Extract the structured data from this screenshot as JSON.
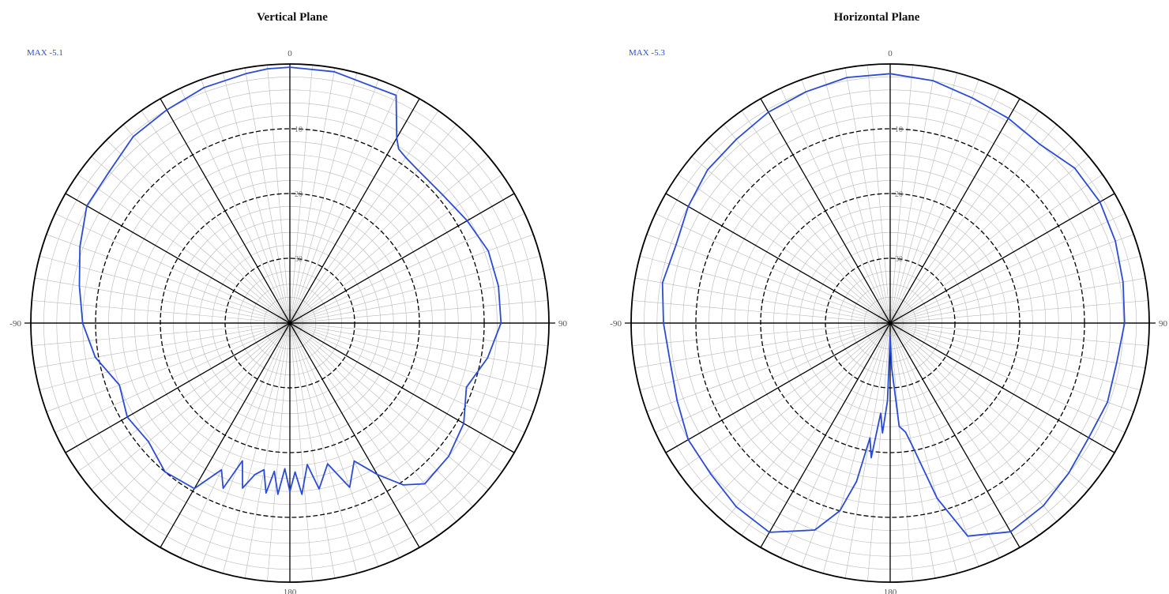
{
  "colors": {
    "trace": "#2a4bd7",
    "grid_fine": "#b8b8b8",
    "grid_major": "#000000"
  },
  "chart_data": [
    {
      "type": "polar-line",
      "title": "Vertical Plane",
      "max_label": "MAX -5.1",
      "angle_labels": [
        "0",
        "90",
        "180",
        "-90"
      ],
      "ring_labels": [
        "10",
        "20",
        "30"
      ],
      "angle_unit": "degrees",
      "radial_range": [
        -40,
        0
      ],
      "series": [
        {
          "angles": [
            0,
            10,
            20,
            25,
            30,
            32,
            35,
            40,
            50,
            60,
            70,
            80,
            90,
            100,
            110,
            120,
            130,
            140,
            145,
            150,
            155,
            160,
            165,
            170,
            173,
            176,
            178,
            180,
            182,
            184,
            186,
            188,
            190,
            193,
            196,
            199,
            202,
            205,
            210,
            220,
            230,
            240,
            250,
            260,
            270,
            280,
            290,
            300,
            310,
            320,
            330,
            340,
            350,
            355
          ],
          "values": [
            -0.5,
            -0.6,
            -1.3,
            -1.2,
            -7.0,
            -8.3,
            -8.8,
            -9.2,
            -9.2,
            -8.4,
            -7.4,
            -7.3,
            -7.4,
            -9.0,
            -11.0,
            -9.0,
            -8.0,
            -7.6,
            -9.5,
            -13.0,
            -16.5,
            -13.0,
            -17.5,
            -14.0,
            -18.0,
            -13.5,
            -17.0,
            -14.0,
            -17.5,
            -13.5,
            -17.0,
            -13.5,
            -17.0,
            -16.0,
            -13.5,
            -17.5,
            -12.5,
            -15.0,
            -10.5,
            -10.0,
            -11.5,
            -11.0,
            -12.0,
            -9.5,
            -8.0,
            -7.0,
            -5.5,
            -3.8,
            -3.6,
            -2.4,
            -2.0,
            -1.3,
            -0.9,
            -0.6
          ]
        }
      ]
    },
    {
      "type": "polar-line",
      "title": "Horizontal Plane",
      "max_label": "MAX -5.3",
      "angle_labels": [
        "0",
        "90",
        "180",
        "-90"
      ],
      "ring_labels": [
        "10",
        "20",
        "30"
      ],
      "angle_unit": "degrees",
      "radial_range": [
        -40,
        0
      ],
      "series": [
        {
          "angles": [
            0,
            10,
            20,
            30,
            40,
            50,
            60,
            70,
            80,
            90,
            100,
            110,
            120,
            130,
            140,
            150,
            160,
            165,
            170,
            172,
            175,
            178,
            180,
            182,
            184,
            186,
            188,
            190,
            192,
            195,
            200,
            210,
            220,
            230,
            240,
            250,
            260,
            270,
            280,
            290,
            300,
            310,
            320,
            330,
            340,
            350
          ],
          "values": [
            -1.5,
            -2.0,
            -3.0,
            -3.5,
            -4.0,
            -2.8,
            -2.6,
            -3.0,
            -3.5,
            -3.8,
            -4.5,
            -4.3,
            -4.6,
            -4.0,
            -3.2,
            -2.8,
            -5.0,
            -12.0,
            -21.0,
            -23.0,
            -24.0,
            -33.0,
            -38.0,
            -28.0,
            -23.0,
            -26.0,
            -19.0,
            -22.0,
            -15.0,
            -10.0,
            -6.0,
            -2.7,
            -3.0,
            -3.8,
            -4.0,
            -5.0,
            -5.5,
            -5.0,
            -4.3,
            -4.8,
            -4.0,
            -3.2,
            -3.0,
            -2.4,
            -2.0,
            -1.5
          ]
        }
      ]
    }
  ]
}
